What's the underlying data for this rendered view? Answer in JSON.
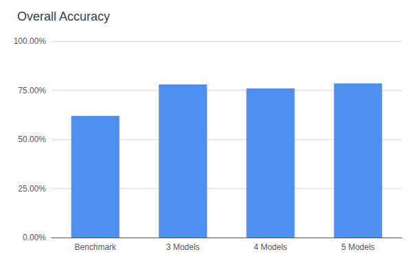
{
  "chart_data": {
    "type": "bar",
    "title": "Overall Accuracy",
    "categories": [
      "Benchmark",
      "3 Models",
      "4 Models",
      "5 Models"
    ],
    "values": [
      0.62,
      0.78,
      0.76,
      0.785
    ],
    "color": "#4d90f0",
    "ylim": [
      0,
      1.0
    ],
    "yticks": [
      {
        "value": 0.0,
        "label": "0.00%"
      },
      {
        "value": 0.25,
        "label": "25.00%"
      },
      {
        "value": 0.5,
        "label": "50.00%"
      },
      {
        "value": 0.75,
        "label": "75.00%"
      },
      {
        "value": 1.0,
        "label": "100.00%"
      }
    ],
    "grid": true
  }
}
